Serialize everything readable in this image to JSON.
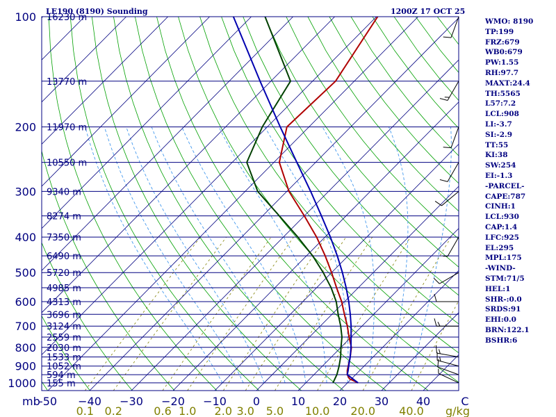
{
  "chart_data": {
    "type": "line",
    "title": "LE190 (8190) Sounding",
    "time": "1200Z 17 OCT 25",
    "pressure_unit_label": "mb",
    "mixing_ratio_unit_label": "g/kg",
    "pressure_levels": [
      {
        "p": 100,
        "label": "100",
        "height": "16230 m"
      },
      {
        "p": 150,
        "label": "",
        "height": "13770 m"
      },
      {
        "p": 200,
        "label": "200",
        "height": "11970 m"
      },
      {
        "p": 250,
        "label": "",
        "height": "10550 m"
      },
      {
        "p": 300,
        "label": "300",
        "height": "9340 m"
      },
      {
        "p": 350,
        "label": "",
        "height": "8274 m"
      },
      {
        "p": 400,
        "label": "400",
        "height": "7350 m"
      },
      {
        "p": 450,
        "label": "",
        "height": "6490 m"
      },
      {
        "p": 500,
        "label": "500",
        "height": "5720 m"
      },
      {
        "p": 550,
        "label": "",
        "height": "4985 m"
      },
      {
        "p": 600,
        "label": "600",
        "height": "4313 m"
      },
      {
        "p": 650,
        "label": "",
        "height": "3696 m"
      },
      {
        "p": 700,
        "label": "700",
        "height": "3124 m"
      },
      {
        "p": 750,
        "label": "",
        "height": "2559 m"
      },
      {
        "p": 800,
        "label": "800",
        "height": "2030 m"
      },
      {
        "p": 850,
        "label": "",
        "height": "1533 m"
      },
      {
        "p": 900,
        "label": "900",
        "height": "1052 m"
      },
      {
        "p": 950,
        "label": "",
        "height": "594 m"
      },
      {
        "p": 1000,
        "label": "1000",
        "height": "155 m"
      }
    ],
    "temperature_ticks": [
      {
        "t": -50,
        "label": "-50"
      },
      {
        "t": -40,
        "label": "−40"
      },
      {
        "t": -30,
        "label": "−30"
      },
      {
        "t": -20,
        "label": "−20"
      },
      {
        "t": -10,
        "label": "−10"
      },
      {
        "t": 0,
        "label": "0"
      },
      {
        "t": 10,
        "label": "10"
      },
      {
        "t": 20,
        "label": "20"
      },
      {
        "t": 30,
        "label": "30"
      },
      {
        "t": 40,
        "label": "40"
      },
      {
        "t": 50,
        "label": "C"
      }
    ],
    "mixing_ratio_labels": [
      {
        "w": 0.1,
        "label": "0.1"
      },
      {
        "w": 0.2,
        "label": "0.2"
      },
      {
        "w": 0.6,
        "label": "0.6"
      },
      {
        "w": 1.0,
        "label": "1.0"
      },
      {
        "w": 2.0,
        "label": "2.0"
      },
      {
        "w": 3.0,
        "label": "3.0"
      },
      {
        "w": 5.0,
        "label": "5.0"
      },
      {
        "w": 10.0,
        "label": "10.0"
      },
      {
        "w": 20.0,
        "label": "20.0"
      },
      {
        "w": 40.0,
        "label": "40.0"
      }
    ],
    "series": [
      {
        "name": "temperature",
        "color": "#b00000",
        "points": [
          {
            "p": 1000,
            "t": 22.5
          },
          {
            "p": 975,
            "t": 19.5
          },
          {
            "p": 950,
            "t": 18.0
          },
          {
            "p": 925,
            "t": 17.0
          },
          {
            "p": 900,
            "t": 16.2
          },
          {
            "p": 850,
            "t": 14.5
          },
          {
            "p": 800,
            "t": 12.5
          },
          {
            "p": 750,
            "t": 9.5
          },
          {
            "p": 700,
            "t": 6.5
          },
          {
            "p": 650,
            "t": 3.0
          },
          {
            "p": 600,
            "t": -0.7
          },
          {
            "p": 550,
            "t": -5.2
          },
          {
            "p": 500,
            "t": -10.0
          },
          {
            "p": 450,
            "t": -15.5
          },
          {
            "p": 400,
            "t": -22.0
          },
          {
            "p": 350,
            "t": -30.0
          },
          {
            "p": 300,
            "t": -39.5
          },
          {
            "p": 250,
            "t": -48.7
          },
          {
            "p": 200,
            "t": -55.3
          },
          {
            "p": 150,
            "t": -54.5
          },
          {
            "p": 100,
            "t": -59.7
          }
        ]
      },
      {
        "name": "dewpoint",
        "color": "#004000",
        "points": [
          {
            "p": 1000,
            "t": 16.5
          },
          {
            "p": 950,
            "t": 15.5
          },
          {
            "p": 900,
            "t": 14.0
          },
          {
            "p": 850,
            "t": 12.2
          },
          {
            "p": 800,
            "t": 10.0
          },
          {
            "p": 750,
            "t": 7.8
          },
          {
            "p": 700,
            "t": 4.9
          },
          {
            "p": 650,
            "t": 1.5
          },
          {
            "p": 600,
            "t": -2.0
          },
          {
            "p": 550,
            "t": -6.5
          },
          {
            "p": 500,
            "t": -12.0
          },
          {
            "p": 450,
            "t": -18.5
          },
          {
            "p": 400,
            "t": -26.5
          },
          {
            "p": 350,
            "t": -36.0
          },
          {
            "p": 300,
            "t": -47.0
          },
          {
            "p": 250,
            "t": -56.5
          },
          {
            "p": 200,
            "t": -61.2
          },
          {
            "p": 150,
            "t": -65.3
          },
          {
            "p": 100,
            "t": -86.7
          }
        ]
      },
      {
        "name": "parcel",
        "color": "#0000b0",
        "points": [
          {
            "p": 1000,
            "t": 22.5
          },
          {
            "p": 950,
            "t": 18.0
          },
          {
            "p": 925,
            "t": 17.2
          },
          {
            "p": 900,
            "t": 16.3
          },
          {
            "p": 850,
            "t": 14.5
          },
          {
            "p": 800,
            "t": 12.4
          },
          {
            "p": 750,
            "t": 10.0
          },
          {
            "p": 700,
            "t": 7.4
          },
          {
            "p": 650,
            "t": 4.4
          },
          {
            "p": 600,
            "t": 1.0
          },
          {
            "p": 550,
            "t": -2.9
          },
          {
            "p": 500,
            "t": -7.4
          },
          {
            "p": 450,
            "t": -12.6
          },
          {
            "p": 400,
            "t": -18.7
          },
          {
            "p": 350,
            "t": -25.9
          },
          {
            "p": 300,
            "t": -34.3
          },
          {
            "p": 250,
            "t": -44.5
          },
          {
            "p": 200,
            "t": -56.9
          },
          {
            "p": 150,
            "t": -72.6
          },
          {
            "p": 100,
            "t": -94.3
          }
        ]
      }
    ],
    "wind_barbs": [
      {
        "p": 1000,
        "dir": 295,
        "spd": 5
      },
      {
        "p": 950,
        "dir": 290,
        "spd": 10
      },
      {
        "p": 900,
        "dir": 285,
        "spd": 15
      },
      {
        "p": 850,
        "dir": 280,
        "spd": 15
      },
      {
        "p": 700,
        "dir": 270,
        "spd": 15
      },
      {
        "p": 600,
        "dir": 270,
        "spd": 10
      },
      {
        "p": 500,
        "dir": 240,
        "spd": 10
      },
      {
        "p": 400,
        "dir": 210,
        "spd": 5
      },
      {
        "p": 300,
        "dir": 230,
        "spd": 10
      },
      {
        "p": 250,
        "dir": 210,
        "spd": 10
      },
      {
        "p": 200,
        "dir": 200,
        "spd": 10
      },
      {
        "p": 150,
        "dir": 210,
        "spd": 15
      },
      {
        "p": 100,
        "dir": 200,
        "spd": 10
      }
    ]
  },
  "params": [
    "WMO: 8190",
    "TP:199",
    "FRZ:679",
    "WB0:679",
    "PW:1.55",
    "RH:97.7",
    "MAXT:24.4",
    "TH:5565",
    "L57:7.2",
    "LCL:908",
    "LI:-3.7",
    "SI:-2.9",
    "TT:55",
    "KI:38",
    "SW:254",
    "EI:-1.3",
    "-PARCEL-",
    "CAPE:787",
    "CINH:1",
    "LCL:930",
    "CAP:1.4",
    "LFC:925",
    "EL:295",
    "MPL:175",
    "-WIND-",
    "STM:71/5",
    "HEL:1",
    "SHR-:0.0",
    "SRDS:91",
    "EHI:0.0",
    "BRN:122.1",
    "BSHR:6"
  ],
  "colors": {
    "isobar": "#000080",
    "isotherm": "#000080",
    "dry_adiabat": "#00a000",
    "moist_adiabat": "#4499ee",
    "mixing_ratio": "#808000",
    "text": "#000080"
  }
}
